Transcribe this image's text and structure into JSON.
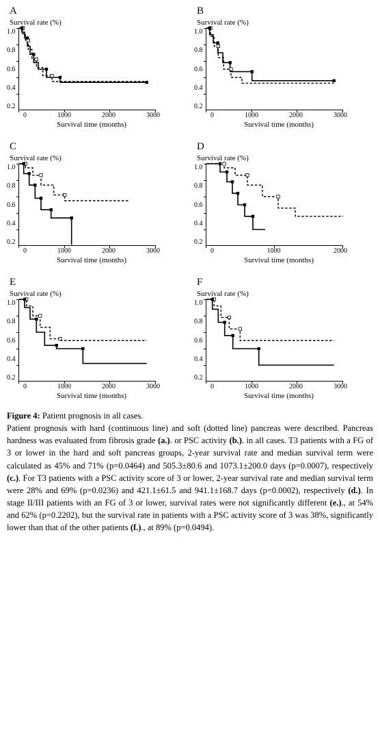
{
  "axes": {
    "ylabel": "Survival rate (%)",
    "xlabel": "Survival time (months)",
    "ylim": [
      0.0,
      1.0
    ],
    "ytick_step": 0.2,
    "font_size_labels": 11,
    "font_size_ticks": 10,
    "line_colors": {
      "solid": "#000000",
      "dashed": "#000000"
    },
    "background_color": "#ffffff",
    "border_color": "#000000"
  },
  "panels": [
    {
      "id": "A",
      "xlim": [
        0,
        3000
      ],
      "xtick_step": 1000,
      "solid": [
        [
          0,
          1.0
        ],
        [
          60,
          1.0
        ],
        [
          60,
          0.95
        ],
        [
          120,
          0.95
        ],
        [
          120,
          0.88
        ],
        [
          180,
          0.88
        ],
        [
          180,
          0.78
        ],
        [
          240,
          0.78
        ],
        [
          240,
          0.68
        ],
        [
          320,
          0.68
        ],
        [
          320,
          0.58
        ],
        [
          420,
          0.58
        ],
        [
          420,
          0.5
        ],
        [
          600,
          0.5
        ],
        [
          600,
          0.4
        ],
        [
          900,
          0.4
        ],
        [
          900,
          0.34
        ],
        [
          2800,
          0.34
        ]
      ],
      "dashed": [
        [
          0,
          1.0
        ],
        [
          80,
          1.0
        ],
        [
          80,
          0.93
        ],
        [
          140,
          0.93
        ],
        [
          140,
          0.85
        ],
        [
          200,
          0.85
        ],
        [
          200,
          0.74
        ],
        [
          280,
          0.74
        ],
        [
          280,
          0.62
        ],
        [
          380,
          0.62
        ],
        [
          380,
          0.52
        ],
        [
          520,
          0.52
        ],
        [
          520,
          0.42
        ],
        [
          720,
          0.42
        ],
        [
          720,
          0.35
        ],
        [
          2800,
          0.35
        ]
      ],
      "solid_markers": [
        [
          60,
          1.0
        ],
        [
          180,
          0.88
        ],
        [
          320,
          0.68
        ],
        [
          600,
          0.5
        ],
        [
          900,
          0.4
        ],
        [
          2800,
          0.34
        ]
      ],
      "dashed_markers": [
        [
          80,
          1.0
        ],
        [
          200,
          0.85
        ],
        [
          380,
          0.62
        ],
        [
          720,
          0.42
        ]
      ]
    },
    {
      "id": "B",
      "xlim": [
        0,
        3000
      ],
      "xtick_step": 1000,
      "solid": [
        [
          0,
          1.0
        ],
        [
          70,
          1.0
        ],
        [
          70,
          0.92
        ],
        [
          150,
          0.92
        ],
        [
          150,
          0.82
        ],
        [
          250,
          0.82
        ],
        [
          250,
          0.7
        ],
        [
          360,
          0.7
        ],
        [
          360,
          0.58
        ],
        [
          520,
          0.58
        ],
        [
          520,
          0.47
        ],
        [
          1000,
          0.47
        ],
        [
          1000,
          0.36
        ],
        [
          2800,
          0.36
        ]
      ],
      "dashed": [
        [
          0,
          1.0
        ],
        [
          90,
          1.0
        ],
        [
          90,
          0.9
        ],
        [
          170,
          0.9
        ],
        [
          170,
          0.78
        ],
        [
          260,
          0.78
        ],
        [
          260,
          0.64
        ],
        [
          380,
          0.64
        ],
        [
          380,
          0.5
        ],
        [
          540,
          0.5
        ],
        [
          540,
          0.4
        ],
        [
          780,
          0.4
        ],
        [
          780,
          0.33
        ],
        [
          2800,
          0.33
        ]
      ],
      "solid_markers": [
        [
          70,
          1.0
        ],
        [
          250,
          0.82
        ],
        [
          520,
          0.58
        ],
        [
          1000,
          0.47
        ],
        [
          2800,
          0.36
        ]
      ],
      "dashed_markers": [
        [
          90,
          1.0
        ],
        [
          260,
          0.78
        ],
        [
          540,
          0.5
        ]
      ]
    },
    {
      "id": "C",
      "xlim": [
        0,
        3000
      ],
      "xtick_step": 1000,
      "solid": [
        [
          0,
          1.0
        ],
        [
          100,
          1.0
        ],
        [
          100,
          0.88
        ],
        [
          220,
          0.88
        ],
        [
          220,
          0.74
        ],
        [
          350,
          0.74
        ],
        [
          350,
          0.58
        ],
        [
          480,
          0.58
        ],
        [
          480,
          0.44
        ],
        [
          700,
          0.44
        ],
        [
          700,
          0.34
        ],
        [
          1150,
          0.34
        ],
        [
          1150,
          0.02
        ],
        [
          1160,
          0.02
        ]
      ],
      "dashed": [
        [
          0,
          1.0
        ],
        [
          140,
          1.0
        ],
        [
          140,
          0.95
        ],
        [
          300,
          0.95
        ],
        [
          300,
          0.86
        ],
        [
          480,
          0.86
        ],
        [
          480,
          0.74
        ],
        [
          760,
          0.74
        ],
        [
          760,
          0.62
        ],
        [
          1000,
          0.62
        ],
        [
          1000,
          0.55
        ],
        [
          2400,
          0.55
        ]
      ],
      "solid_markers": [
        [
          100,
          1.0
        ],
        [
          220,
          0.88
        ],
        [
          350,
          0.74
        ],
        [
          480,
          0.58
        ],
        [
          700,
          0.44
        ],
        [
          1150,
          0.34
        ]
      ],
      "dashed_markers": [
        [
          140,
          1.0
        ],
        [
          480,
          0.86
        ],
        [
          1000,
          0.62
        ]
      ]
    },
    {
      "id": "D",
      "xlim": [
        0,
        2000
      ],
      "xtick_step": 1000,
      "solid": [
        [
          0,
          1.0
        ],
        [
          200,
          1.0
        ],
        [
          200,
          0.9
        ],
        [
          300,
          0.9
        ],
        [
          300,
          0.78
        ],
        [
          380,
          0.78
        ],
        [
          380,
          0.64
        ],
        [
          460,
          0.64
        ],
        [
          460,
          0.5
        ],
        [
          560,
          0.5
        ],
        [
          560,
          0.36
        ],
        [
          680,
          0.36
        ],
        [
          680,
          0.2
        ],
        [
          860,
          0.2
        ]
      ],
      "dashed": [
        [
          0,
          1.0
        ],
        [
          260,
          1.0
        ],
        [
          260,
          0.95
        ],
        [
          420,
          0.95
        ],
        [
          420,
          0.86
        ],
        [
          600,
          0.86
        ],
        [
          600,
          0.74
        ],
        [
          820,
          0.74
        ],
        [
          820,
          0.6
        ],
        [
          1050,
          0.6
        ],
        [
          1050,
          0.46
        ],
        [
          1300,
          0.46
        ],
        [
          1300,
          0.36
        ],
        [
          2000,
          0.36
        ]
      ],
      "solid_markers": [
        [
          200,
          1.0
        ],
        [
          300,
          0.9
        ],
        [
          380,
          0.78
        ],
        [
          460,
          0.64
        ],
        [
          560,
          0.5
        ],
        [
          680,
          0.36
        ]
      ],
      "dashed_markers": [
        [
          260,
          1.0
        ],
        [
          600,
          0.86
        ],
        [
          1050,
          0.6
        ]
      ]
    },
    {
      "id": "E",
      "xlim": [
        0,
        3000
      ],
      "xtick_step": 1000,
      "solid": [
        [
          0,
          1.0
        ],
        [
          120,
          1.0
        ],
        [
          120,
          0.9
        ],
        [
          240,
          0.9
        ],
        [
          240,
          0.76
        ],
        [
          380,
          0.76
        ],
        [
          380,
          0.6
        ],
        [
          560,
          0.6
        ],
        [
          560,
          0.44
        ],
        [
          820,
          0.44
        ],
        [
          820,
          0.4
        ],
        [
          1400,
          0.4
        ],
        [
          1400,
          0.22
        ],
        [
          2800,
          0.22
        ]
      ],
      "dashed": [
        [
          0,
          1.0
        ],
        [
          160,
          1.0
        ],
        [
          160,
          0.92
        ],
        [
          300,
          0.92
        ],
        [
          300,
          0.8
        ],
        [
          460,
          0.8
        ],
        [
          460,
          0.66
        ],
        [
          680,
          0.66
        ],
        [
          680,
          0.52
        ],
        [
          900,
          0.52
        ],
        [
          900,
          0.5
        ],
        [
          2800,
          0.5
        ]
      ],
      "solid_markers": [
        [
          120,
          1.0
        ],
        [
          380,
          0.76
        ],
        [
          820,
          0.44
        ],
        [
          1400,
          0.4
        ]
      ],
      "dashed_markers": [
        [
          160,
          1.0
        ],
        [
          460,
          0.8
        ],
        [
          900,
          0.52
        ]
      ]
    },
    {
      "id": "F",
      "xlim": [
        0,
        3000
      ],
      "xtick_step": 1000,
      "solid": [
        [
          0,
          1.0
        ],
        [
          130,
          1.0
        ],
        [
          130,
          0.88
        ],
        [
          260,
          0.88
        ],
        [
          260,
          0.72
        ],
        [
          400,
          0.72
        ],
        [
          400,
          0.56
        ],
        [
          580,
          0.56
        ],
        [
          580,
          0.4
        ],
        [
          1150,
          0.4
        ],
        [
          1150,
          0.2
        ],
        [
          2800,
          0.2
        ]
      ],
      "dashed": [
        [
          0,
          1.0
        ],
        [
          170,
          1.0
        ],
        [
          170,
          0.92
        ],
        [
          320,
          0.92
        ],
        [
          320,
          0.78
        ],
        [
          500,
          0.78
        ],
        [
          500,
          0.64
        ],
        [
          740,
          0.64
        ],
        [
          740,
          0.5
        ],
        [
          2800,
          0.5
        ]
      ],
      "solid_markers": [
        [
          130,
          1.0
        ],
        [
          400,
          0.72
        ],
        [
          580,
          0.56
        ],
        [
          1150,
          0.4
        ]
      ],
      "dashed_markers": [
        [
          170,
          1.0
        ],
        [
          500,
          0.78
        ],
        [
          740,
          0.64
        ]
      ]
    }
  ],
  "caption": {
    "fig_label": "Figure 4:",
    "title": "Patient prognosis in all cases.",
    "body_1": "Patient prognosis with hard (continuous line) and soft (dotted line) pancreas were described. Pancreas hardness was evaluated from fibrosis grade ",
    "a": "(a.)",
    "body_2": ". or PSC activity ",
    "b": "(b.)",
    "body_3": ". in all cases. T3 patients with a FG of 3 or lower in the hard and soft pancreas groups, 2-year survival rate and median survival term were calculated as 45% and 71% (p=0.0464) and 505.3±80.6 and 1073.1±200.0 days (p=0.0007), respectively ",
    "c": "(c.)",
    "body_4": ". For T3 patients with a PSC activity score of 3 or lower, 2-year survival rate and median survival term were 28% and 69% (p=0.0236) and 421.1±61.5 and 941.1±168.7 days (p=0.0002), respectively ",
    "d": "(d.)",
    "body_5": ". In stage II/III patients with an FG of 3 or lower, survival rates were not significantly different ",
    "e": "(e.)",
    "body_6": "., at 54% and 62% (p=0.2202), but the survival rate in patients with a PSC activity score of 3 was 38%, significantly lower than that of the other patients ",
    "f": "(f.)",
    "body_7": "., at 89% (p=0.0494)."
  }
}
